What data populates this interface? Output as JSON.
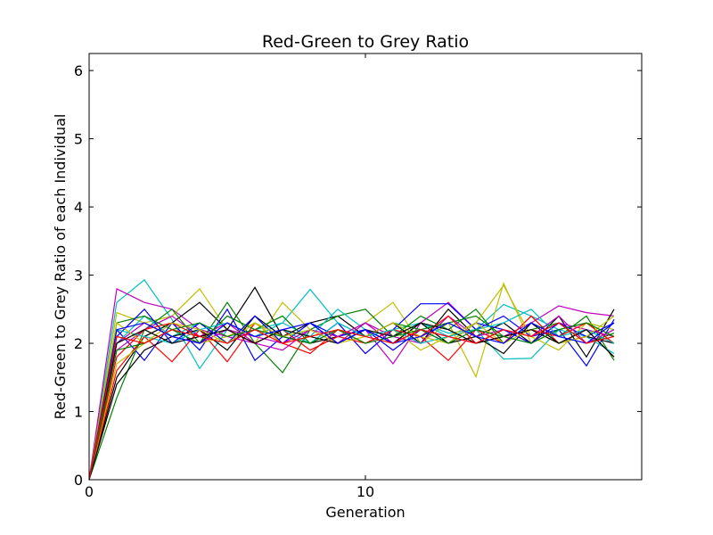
{
  "chart_data": {
    "type": "line",
    "title": "Red-Green to Grey Ratio",
    "xlabel": "Generation",
    "ylabel": "Red-Green to Grey Ratio of each Individual",
    "xlim": [
      0,
      20
    ],
    "ylim": [
      0,
      6.25
    ],
    "xticks": [
      0,
      10
    ],
    "yticks": [
      0,
      1,
      2,
      3,
      4,
      5,
      6
    ],
    "grid": false,
    "legend": "none",
    "x": [
      0,
      1,
      2,
      3,
      4,
      5,
      6,
      7,
      8,
      9,
      10,
      11,
      12,
      13,
      14,
      15,
      16,
      17,
      18,
      19
    ],
    "series": [
      {
        "color": "#00bfbf",
        "values": [
          0,
          2.6,
          2.93,
          2.35,
          1.63,
          2.2,
          2.1,
          2.3,
          2.79,
          2.3,
          2.1,
          2.2,
          2.3,
          2.15,
          2.2,
          2.57,
          2.4,
          2.2,
          2.3,
          2.2
        ]
      },
      {
        "color": "#bf00bf",
        "values": [
          0,
          2.8,
          2.6,
          2.5,
          2.2,
          2.1,
          2.0,
          2.2,
          2.3,
          2.0,
          2.2,
          1.7,
          2.3,
          2.6,
          2.2,
          2.1,
          2.3,
          2.55,
          2.45,
          2.4
        ]
      },
      {
        "color": "#bfbf00",
        "values": [
          0,
          2.45,
          2.3,
          2.4,
          2.8,
          2.2,
          2.0,
          2.6,
          2.2,
          2.1,
          2.3,
          2.6,
          2.0,
          2.3,
          1.51,
          2.88,
          2.0,
          2.2,
          2.3,
          2.1
        ]
      },
      {
        "color": "#000000",
        "values": [
          0,
          1.5,
          2.1,
          2.3,
          2.6,
          2.2,
          2.82,
          2.1,
          2.3,
          2.4,
          2.1,
          2.3,
          2.0,
          2.5,
          2.1,
          2.3,
          2.0,
          2.4,
          1.8,
          2.5
        ]
      },
      {
        "color": "#008000",
        "values": [
          0,
          1.2,
          2.2,
          2.5,
          2.0,
          2.6,
          2.0,
          1.57,
          2.2,
          2.4,
          2.5,
          2.1,
          2.4,
          2.2,
          2.5,
          2.0,
          2.3,
          2.1,
          2.4,
          1.75
        ]
      },
      {
        "color": "#0000ff",
        "values": [
          0,
          2.2,
          1.75,
          2.3,
          1.9,
          2.5,
          1.75,
          2.1,
          2.0,
          2.3,
          1.85,
          2.2,
          2.58,
          2.58,
          2.2,
          2.4,
          2.1,
          2.2,
          1.67,
          2.35
        ]
      },
      {
        "color": "#ff0000",
        "values": [
          0,
          1.6,
          2.1,
          1.73,
          2.2,
          1.73,
          2.3,
          2.0,
          1.85,
          2.2,
          2.0,
          2.2,
          2.1,
          1.75,
          2.2,
          2.0,
          2.4,
          2.0,
          2.2,
          1.8
        ]
      },
      {
        "color": "#00bfbf",
        "values": [
          0,
          2.0,
          2.4,
          2.1,
          2.3,
          2.0,
          2.2,
          2.3,
          2.1,
          2.5,
          2.2,
          2.0,
          2.3,
          2.1,
          2.2,
          1.77,
          1.78,
          2.2,
          2.1,
          1.85
        ]
      },
      {
        "color": "#bf00bf",
        "values": [
          0,
          1.9,
          2.2,
          2.4,
          2.1,
          2.3,
          2.0,
          1.9,
          2.2,
          2.0,
          2.3,
          2.1,
          2.0,
          2.4,
          2.1,
          2.2,
          2.0,
          2.3,
          2.2,
          2.1
        ]
      },
      {
        "color": "#bfbf00",
        "values": [
          0,
          1.7,
          2.0,
          2.2,
          2.0,
          2.1,
          2.3,
          2.0,
          2.1,
          2.2,
          2.0,
          2.2,
          1.9,
          2.1,
          2.3,
          2.85,
          2.1,
          1.9,
          2.3,
          2.2
        ]
      },
      {
        "color": "#000000",
        "values": [
          0,
          1.4,
          1.9,
          2.1,
          2.2,
          1.9,
          2.4,
          2.1,
          2.0,
          2.1,
          2.2,
          2.0,
          2.3,
          2.0,
          2.1,
          1.85,
          2.3,
          2.0,
          2.1,
          2.0
        ]
      },
      {
        "color": "#008000",
        "values": [
          0,
          2.3,
          2.4,
          2.2,
          2.0,
          2.4,
          2.2,
          2.4,
          2.0,
          2.2,
          2.1,
          2.3,
          2.2,
          2.3,
          2.4,
          2.1,
          2.2,
          2.3,
          2.0,
          2.15
        ]
      },
      {
        "color": "#0000ff",
        "values": [
          0,
          2.1,
          2.5,
          2.0,
          2.3,
          2.0,
          2.4,
          2.0,
          2.3,
          2.1,
          2.2,
          1.9,
          2.2,
          2.0,
          2.3,
          2.2,
          2.0,
          2.3,
          2.1,
          2.3
        ]
      },
      {
        "color": "#ff0000",
        "values": [
          0,
          1.8,
          2.2,
          2.3,
          2.1,
          2.2,
          2.0,
          2.2,
          1.9,
          2.1,
          2.0,
          2.2,
          2.1,
          2.4,
          2.0,
          2.1,
          2.2,
          2.1,
          2.3,
          2.0
        ]
      },
      {
        "color": "#00bfbf",
        "values": [
          0,
          2.2,
          2.1,
          2.0,
          2.2,
          2.3,
          2.1,
          2.2,
          2.0,
          2.3,
          2.1,
          2.2,
          2.0,
          2.1,
          2.2,
          2.3,
          2.5,
          2.1,
          2.2,
          2.0
        ]
      },
      {
        "color": "#bf00bf",
        "values": [
          0,
          2.0,
          2.3,
          2.1,
          2.0,
          2.2,
          2.1,
          2.0,
          2.2,
          2.1,
          2.3,
          2.0,
          2.2,
          2.1,
          2.0,
          2.2,
          2.1,
          2.4,
          2.0,
          2.2
        ]
      },
      {
        "color": "#bfbf00",
        "values": [
          0,
          2.3,
          2.0,
          2.3,
          2.2,
          2.0,
          2.3,
          2.1,
          2.2,
          2.0,
          2.1,
          2.3,
          2.1,
          2.0,
          2.3,
          2.0,
          2.2,
          2.0,
          2.1,
          2.4
        ]
      },
      {
        "color": "#000000",
        "values": [
          0,
          2.0,
          2.2,
          2.0,
          2.1,
          2.2,
          2.0,
          2.2,
          2.1,
          2.0,
          2.2,
          2.1,
          2.3,
          2.2,
          2.0,
          2.1,
          2.2,
          2.0,
          2.2,
          1.8
        ]
      },
      {
        "color": "#008000",
        "values": [
          0,
          1.9,
          2.0,
          2.2,
          2.3,
          2.1,
          2.2,
          2.1,
          2.0,
          2.2,
          2.0,
          2.1,
          2.2,
          2.0,
          2.2,
          2.1,
          2.0,
          2.2,
          2.3,
          2.1
        ]
      },
      {
        "color": "#0000ff",
        "values": [
          0,
          2.2,
          2.3,
          2.1,
          2.0,
          2.3,
          2.1,
          2.2,
          2.3,
          2.0,
          2.2,
          2.0,
          2.1,
          2.3,
          2.1,
          2.0,
          2.3,
          2.1,
          2.0,
          2.3
        ]
      },
      {
        "color": "#ff0000",
        "values": [
          0,
          2.1,
          2.0,
          2.2,
          2.1,
          2.0,
          2.2,
          2.0,
          2.1,
          2.2,
          2.1,
          2.0,
          2.2,
          2.1,
          2.0,
          2.2,
          2.1,
          2.3,
          2.0,
          2.1
        ]
      }
    ]
  }
}
